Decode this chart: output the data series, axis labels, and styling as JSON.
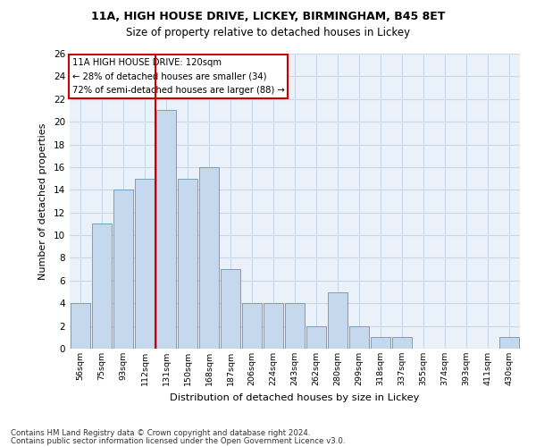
{
  "title1": "11A, HIGH HOUSE DRIVE, LICKEY, BIRMINGHAM, B45 8ET",
  "title2": "Size of property relative to detached houses in Lickey",
  "xlabel": "Distribution of detached houses by size in Lickey",
  "ylabel": "Number of detached properties",
  "annotation_line1": "11A HIGH HOUSE DRIVE: 120sqm",
  "annotation_line2": "← 28% of detached houses are smaller (34)",
  "annotation_line3": "72% of semi-detached houses are larger (88) →",
  "footer1": "Contains HM Land Registry data © Crown copyright and database right 2024.",
  "footer2": "Contains public sector information licensed under the Open Government Licence v3.0.",
  "categories": [
    "56sqm",
    "75sqm",
    "93sqm",
    "112sqm",
    "131sqm",
    "150sqm",
    "168sqm",
    "187sqm",
    "206sqm",
    "224sqm",
    "243sqm",
    "262sqm",
    "280sqm",
    "299sqm",
    "318sqm",
    "337sqm",
    "355sqm",
    "374sqm",
    "393sqm",
    "411sqm",
    "430sqm"
  ],
  "values": [
    4,
    11,
    14,
    15,
    21,
    15,
    16,
    7,
    4,
    4,
    4,
    2,
    5,
    2,
    1,
    1,
    0,
    0,
    0,
    0,
    1
  ],
  "bar_color": "#c5d8ed",
  "bar_edge_color": "#5a9abf",
  "grid_color": "#c8d8e8",
  "background_color": "#eaf1f8",
  "vline_x": 3.5,
  "vline_color": "#cc0000",
  "ylim": [
    0,
    26
  ],
  "yticks": [
    0,
    2,
    4,
    6,
    8,
    10,
    12,
    14,
    16,
    18,
    20,
    22,
    24,
    26
  ]
}
